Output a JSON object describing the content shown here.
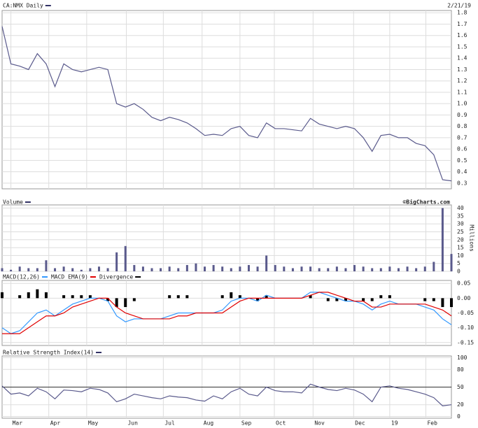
{
  "chart_data": [
    {
      "type": "line",
      "title": "CA:NMX Daily",
      "date": "2/21/19",
      "color": "#5a5a8c",
      "grid": true,
      "xlim": [
        0,
        51
      ],
      "ylim": [
        0.25,
        1.82
      ],
      "yticks": [
        1.8,
        1.7,
        1.6,
        1.5,
        1.4,
        1.3,
        1.2,
        1.1,
        {
          "value": 1.0,
          "label": "1.0"
        },
        0.9,
        0.8,
        0.7,
        0.6,
        0.5,
        0.4,
        0.3
      ],
      "values": [
        1.68,
        1.35,
        1.33,
        1.3,
        1.44,
        1.35,
        1.15,
        1.35,
        1.3,
        1.28,
        1.3,
        1.32,
        1.3,
        1.0,
        0.97,
        1.0,
        0.95,
        0.88,
        0.85,
        0.88,
        0.86,
        0.83,
        0.78,
        0.72,
        0.73,
        0.72,
        0.78,
        0.8,
        0.72,
        0.7,
        0.83,
        0.78,
        0.78,
        0.77,
        0.76,
        0.87,
        0.82,
        0.8,
        0.78,
        0.8,
        0.78,
        0.7,
        0.58,
        0.72,
        0.73,
        0.7,
        0.7,
        0.65,
        0.63,
        0.55,
        0.33,
        0.32
      ]
    },
    {
      "type": "bar",
      "title": "Volume",
      "source": "©BigCharts.com",
      "ylabel": "Millions",
      "color": "#5a5a8c",
      "grid": true,
      "xlim": [
        0,
        51
      ],
      "ylim": [
        0,
        42
      ],
      "yticks": [
        40,
        35,
        30,
        25,
        20,
        15,
        10,
        5,
        0
      ],
      "values": [
        2,
        1,
        3,
        2,
        2,
        7,
        2,
        3,
        2,
        1,
        2,
        3,
        2,
        12,
        16,
        4,
        3,
        2,
        2,
        3,
        2,
        4,
        5,
        3,
        4,
        3,
        2,
        3,
        4,
        3,
        10,
        4,
        3,
        2,
        3,
        3,
        2,
        2,
        3,
        2,
        4,
        3,
        2,
        2,
        3,
        2,
        3,
        2,
        3,
        6,
        40,
        11
      ]
    },
    {
      "type": "macd",
      "grid": true,
      "xlim": [
        0,
        51
      ],
      "ylim": [
        -0.16,
        0.06
      ],
      "yticks": [
        {
          "value": 0.05,
          "label": "0.05"
        },
        {
          "value": 0,
          "label": "0.00"
        },
        {
          "value": -0.05,
          "label": "-0.05"
        },
        {
          "value": -0.1,
          "label": "-0.10"
        },
        {
          "value": -0.15,
          "label": "-0.15"
        }
      ],
      "series": [
        {
          "name": "MACD(12,26)",
          "color": "#3399ff",
          "values": [
            -0.1,
            -0.12,
            -0.11,
            -0.08,
            -0.05,
            -0.04,
            -0.06,
            -0.04,
            -0.02,
            -0.01,
            0.0,
            0.0,
            -0.01,
            -0.06,
            -0.08,
            -0.07,
            -0.07,
            -0.07,
            -0.07,
            -0.06,
            -0.05,
            -0.05,
            -0.05,
            -0.05,
            -0.05,
            -0.04,
            -0.01,
            0.0,
            0.0,
            -0.01,
            0.01,
            0.0,
            0.0,
            0.0,
            0.0,
            0.02,
            0.02,
            0.01,
            0.0,
            -0.01,
            -0.01,
            -0.02,
            -0.04,
            -0.02,
            -0.01,
            -0.02,
            -0.02,
            -0.02,
            -0.03,
            -0.04,
            -0.07,
            -0.09
          ]
        },
        {
          "name": "MACD EMA(9)",
          "color": "#e00000",
          "values": [
            -0.12,
            -0.12,
            -0.12,
            -0.1,
            -0.08,
            -0.06,
            -0.06,
            -0.05,
            -0.03,
            -0.02,
            -0.01,
            0.0,
            0.0,
            -0.03,
            -0.05,
            -0.06,
            -0.07,
            -0.07,
            -0.07,
            -0.07,
            -0.06,
            -0.06,
            -0.05,
            -0.05,
            -0.05,
            -0.05,
            -0.03,
            -0.01,
            0.0,
            0.0,
            0.0,
            0.0,
            0.0,
            0.0,
            0.0,
            0.01,
            0.02,
            0.02,
            0.01,
            0.0,
            -0.01,
            -0.01,
            -0.03,
            -0.03,
            -0.02,
            -0.02,
            -0.02,
            -0.02,
            -0.02,
            -0.03,
            -0.04,
            -0.06
          ]
        },
        {
          "name": "Divergence",
          "color": "#000000",
          "values": [
            0.02,
            0,
            0.01,
            0.02,
            0.03,
            0.02,
            0,
            0.01,
            0.01,
            0.01,
            0.01,
            0,
            -0.01,
            -0.03,
            -0.03,
            -0.01,
            0,
            0,
            0,
            0.01,
            0.01,
            0.01,
            0,
            0,
            0,
            0.01,
            0.02,
            0.01,
            0,
            -0.01,
            0.01,
            0,
            0,
            0,
            0,
            0.01,
            0,
            -0.01,
            -0.01,
            -0.01,
            0,
            -0.01,
            -0.01,
            0.01,
            0.01,
            0,
            0,
            0,
            -0.01,
            -0.01,
            -0.03,
            -0.03
          ]
        }
      ]
    },
    {
      "type": "line",
      "title": "Relative Strength Index(14)",
      "color": "#5a5a8c",
      "grid": true,
      "hline": 50,
      "xlim": [
        0,
        51
      ],
      "ylim": [
        -3,
        103
      ],
      "yticks": [
        100,
        80,
        50,
        20,
        0
      ],
      "xticks": [
        {
          "value": 1,
          "label": "Mar"
        },
        {
          "value": 5.3,
          "label": "Apr"
        },
        {
          "value": 9.6,
          "label": "May"
        },
        {
          "value": 14.1,
          "label": "Jun"
        },
        {
          "value": 18.3,
          "label": "Jul"
        },
        {
          "value": 22.7,
          "label": "Aug"
        },
        {
          "value": 27,
          "label": "Sep"
        },
        {
          "value": 30.9,
          "label": "Oct"
        },
        {
          "value": 35.3,
          "label": "Nov"
        },
        {
          "value": 39.9,
          "label": "Dec"
        },
        {
          "value": 44,
          "label": "19"
        },
        {
          "value": 48.1,
          "label": "Feb"
        }
      ],
      "values": [
        52,
        38,
        40,
        35,
        48,
        42,
        30,
        45,
        44,
        42,
        48,
        46,
        40,
        25,
        30,
        38,
        35,
        32,
        30,
        35,
        33,
        32,
        28,
        26,
        35,
        30,
        42,
        48,
        38,
        35,
        50,
        44,
        42,
        42,
        40,
        55,
        50,
        46,
        44,
        48,
        45,
        38,
        25,
        50,
        52,
        48,
        46,
        42,
        38,
        32,
        18,
        20
      ]
    }
  ]
}
